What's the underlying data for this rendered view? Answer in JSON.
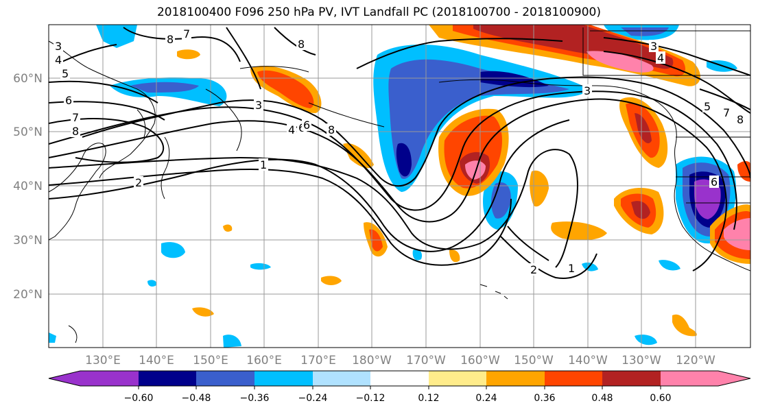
{
  "title": "2018100400 F096 250 hPa PV, IVT Landfall PC (2018100700 - 2018100900)",
  "map": {
    "lat_labels": [
      "60°N",
      "50°N",
      "40°N",
      "30°N",
      "20°N"
    ],
    "lon_labels": [
      "130°E",
      "140°E",
      "150°E",
      "160°E",
      "170°E",
      "180°W",
      "170°W",
      "160°W",
      "150°W",
      "140°W",
      "130°W",
      "120°W"
    ]
  },
  "contour_labels": [
    "8",
    "7",
    "3",
    "4",
    "5",
    "6",
    "7",
    "8",
    "8",
    "6",
    "3",
    "4",
    "6",
    "8",
    "1",
    "2",
    "2",
    "1",
    "3",
    "3",
    "4",
    "5",
    "7",
    "8",
    "6"
  ],
  "colorbar": {
    "ticks": [
      "−0.60",
      "−0.48",
      "−0.36",
      "−0.24",
      "−0.12",
      "0.12",
      "0.24",
      "0.36",
      "0.48",
      "0.60"
    ],
    "colors": [
      "#9932cc",
      "#00008b",
      "#3a5fcd",
      "#00bfff",
      "#b0e2ff",
      "#ffffff",
      "#ffec8b",
      "#ffa500",
      "#ff4500",
      "#b22222",
      "#ff82ab"
    ]
  }
}
